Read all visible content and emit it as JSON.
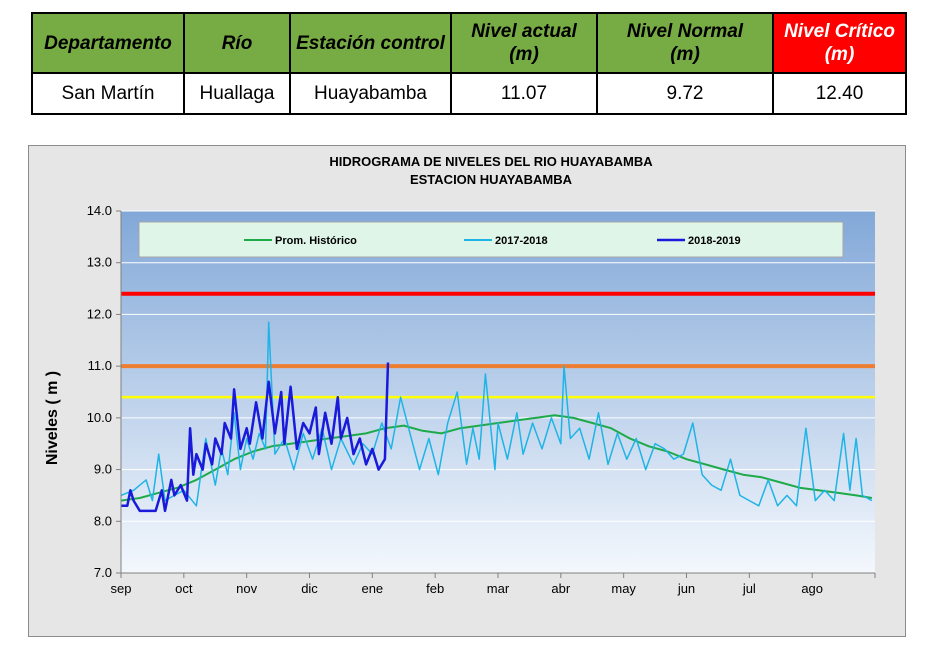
{
  "table": {
    "headers": [
      "Departamento",
      "Río",
      "Estación control",
      "Nivel actual (m)",
      "Nivel Normal (m)",
      "Nivel Crítico (m)"
    ],
    "row": [
      "San Martín",
      "Huallaga",
      "Huayabamba",
      "11.07",
      "9.72",
      "12.40"
    ],
    "colors": {
      "header_bg": "#77ab43",
      "critical_bg": "#ff0000"
    }
  },
  "chart_data": {
    "type": "line",
    "title": "HIDROGRAMA DE NIVELES DEL RIO HUAYABAMBA",
    "subtitle": "ESTACION HUAYABAMBA",
    "xlabel": "",
    "ylabel": "Niveles ( m )",
    "ylim": [
      7.0,
      14.0
    ],
    "yticks": [
      "7.0",
      "8.0",
      "9.0",
      "10.0",
      "11.0",
      "12.0",
      "13.0",
      "14.0"
    ],
    "xticks": [
      "sep",
      "oct",
      "nov",
      "dic",
      "ene",
      "feb",
      "mar",
      "abr",
      "may",
      "jun",
      "jul",
      "ago"
    ],
    "legend_position": "top",
    "threshold_lines": [
      {
        "value": 12.4,
        "color": "#ff0000"
      },
      {
        "value": 11.0,
        "color": "#ed7d31"
      },
      {
        "value": 10.4,
        "color": "#ffff00"
      }
    ],
    "series": [
      {
        "name": "Prom. Histórico",
        "color": "#1faa4a",
        "x": [
          0,
          0.3,
          0.6,
          0.9,
          1.2,
          1.5,
          1.8,
          2.1,
          2.4,
          2.7,
          3.0,
          3.3,
          3.6,
          3.9,
          4.2,
          4.5,
          4.8,
          5.1,
          5.4,
          5.7,
          6.0,
          6.3,
          6.6,
          6.9,
          7.2,
          7.5,
          7.8,
          8.1,
          8.4,
          8.7,
          9.0,
          9.3,
          9.6,
          9.9,
          10.2,
          10.5,
          10.8,
          11.1,
          11.4,
          11.7,
          11.95
        ],
        "values": [
          8.4,
          8.45,
          8.55,
          8.65,
          8.8,
          9.0,
          9.2,
          9.35,
          9.45,
          9.5,
          9.55,
          9.6,
          9.65,
          9.7,
          9.8,
          9.85,
          9.75,
          9.7,
          9.8,
          9.85,
          9.9,
          9.95,
          10.0,
          10.05,
          10.0,
          9.9,
          9.8,
          9.6,
          9.45,
          9.35,
          9.2,
          9.1,
          9.0,
          8.9,
          8.85,
          8.75,
          8.65,
          8.6,
          8.55,
          8.5,
          8.45
        ]
      },
      {
        "name": "2017-2018",
        "color": "#1fb4e6",
        "x": [
          0,
          0.2,
          0.4,
          0.5,
          0.6,
          0.7,
          0.85,
          1.0,
          1.2,
          1.35,
          1.5,
          1.6,
          1.7,
          1.8,
          1.9,
          2.0,
          2.1,
          2.2,
          2.3,
          2.35,
          2.45,
          2.6,
          2.75,
          2.9,
          3.05,
          3.2,
          3.35,
          3.5,
          3.7,
          3.85,
          4.0,
          4.15,
          4.3,
          4.45,
          4.6,
          4.75,
          4.9,
          5.05,
          5.2,
          5.35,
          5.5,
          5.6,
          5.7,
          5.8,
          5.95,
          6.0,
          6.15,
          6.3,
          6.4,
          6.55,
          6.7,
          6.85,
          7.0,
          7.05,
          7.15,
          7.3,
          7.45,
          7.6,
          7.75,
          7.9,
          8.05,
          8.2,
          8.35,
          8.5,
          8.65,
          8.8,
          8.95,
          9.1,
          9.25,
          9.4,
          9.55,
          9.7,
          9.85,
          10.0,
          10.15,
          10.3,
          10.45,
          10.6,
          10.75,
          10.9,
          11.05,
          11.2,
          11.35,
          11.5,
          11.6,
          11.7,
          11.8,
          11.95
        ],
        "values": [
          8.5,
          8.6,
          8.8,
          8.4,
          9.3,
          8.4,
          8.5,
          8.6,
          8.3,
          9.6,
          8.7,
          9.4,
          8.9,
          10.1,
          9.0,
          9.6,
          9.2,
          9.7,
          9.4,
          11.85,
          9.3,
          9.6,
          9.0,
          9.7,
          9.2,
          9.8,
          9.0,
          9.6,
          9.1,
          9.5,
          9.3,
          9.9,
          9.4,
          10.4,
          9.7,
          9.0,
          9.6,
          8.9,
          9.9,
          10.5,
          9.1,
          9.8,
          9.2,
          10.85,
          9.0,
          9.9,
          9.2,
          10.1,
          9.3,
          9.9,
          9.4,
          10.0,
          9.5,
          11.0,
          9.6,
          9.8,
          9.2,
          10.1,
          9.1,
          9.7,
          9.2,
          9.6,
          9.0,
          9.5,
          9.4,
          9.2,
          9.3,
          9.9,
          8.9,
          8.7,
          8.6,
          9.2,
          8.5,
          8.4,
          8.3,
          8.8,
          8.3,
          8.5,
          8.3,
          9.8,
          8.4,
          8.6,
          8.4,
          9.7,
          8.6,
          9.6,
          8.5,
          8.4
        ]
      },
      {
        "name": "2018-2019",
        "color": "#1a1adb",
        "x": [
          0,
          0.1,
          0.15,
          0.2,
          0.3,
          0.45,
          0.55,
          0.65,
          0.7,
          0.8,
          0.85,
          0.95,
          1.05,
          1.1,
          1.15,
          1.2,
          1.3,
          1.35,
          1.45,
          1.5,
          1.6,
          1.65,
          1.75,
          1.8,
          1.9,
          2.0,
          2.05,
          2.15,
          2.25,
          2.35,
          2.45,
          2.55,
          2.6,
          2.7,
          2.8,
          2.9,
          3.0,
          3.1,
          3.15,
          3.25,
          3.35,
          3.45,
          3.5,
          3.6,
          3.7,
          3.8,
          3.9,
          4.0,
          4.1,
          4.2,
          4.25
        ],
        "values": [
          8.3,
          8.3,
          8.6,
          8.4,
          8.2,
          8.2,
          8.2,
          8.6,
          8.2,
          8.8,
          8.5,
          8.7,
          8.4,
          9.8,
          8.9,
          9.3,
          9.0,
          9.5,
          9.1,
          9.6,
          9.3,
          9.9,
          9.6,
          10.55,
          9.4,
          9.8,
          9.5,
          10.3,
          9.6,
          10.7,
          9.7,
          10.5,
          9.5,
          10.6,
          9.4,
          9.9,
          9.7,
          10.2,
          9.3,
          10.1,
          9.5,
          10.4,
          9.6,
          10.0,
          9.3,
          9.6,
          9.1,
          9.4,
          9.0,
          9.2,
          11.07
        ]
      }
    ]
  }
}
